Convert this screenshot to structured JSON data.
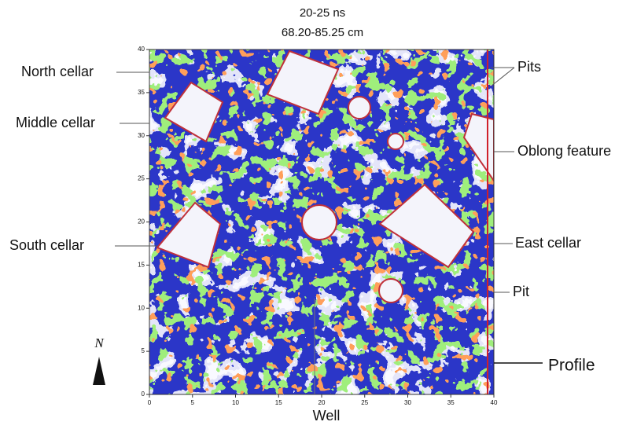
{
  "header": {
    "title_lines": [
      "20-25 ns",
      "68.20-85.25 cm"
    ]
  },
  "axes": {
    "x_ticks": [
      0,
      5,
      10,
      15,
      20,
      25,
      30,
      35,
      40
    ],
    "y_ticks": [
      0,
      5,
      10,
      15,
      20,
      25,
      30,
      35,
      40
    ],
    "x_label": "Well"
  },
  "annotations": {
    "north_cellar": "North cellar",
    "middle_cellar": "Middle cellar",
    "south_cellar": "South cellar",
    "pits": "Pits",
    "oblong_feature": "Oblong feature",
    "east_cellar": "East cellar",
    "pit": "Pit",
    "profile": "Profile"
  },
  "north_label": "N"
}
